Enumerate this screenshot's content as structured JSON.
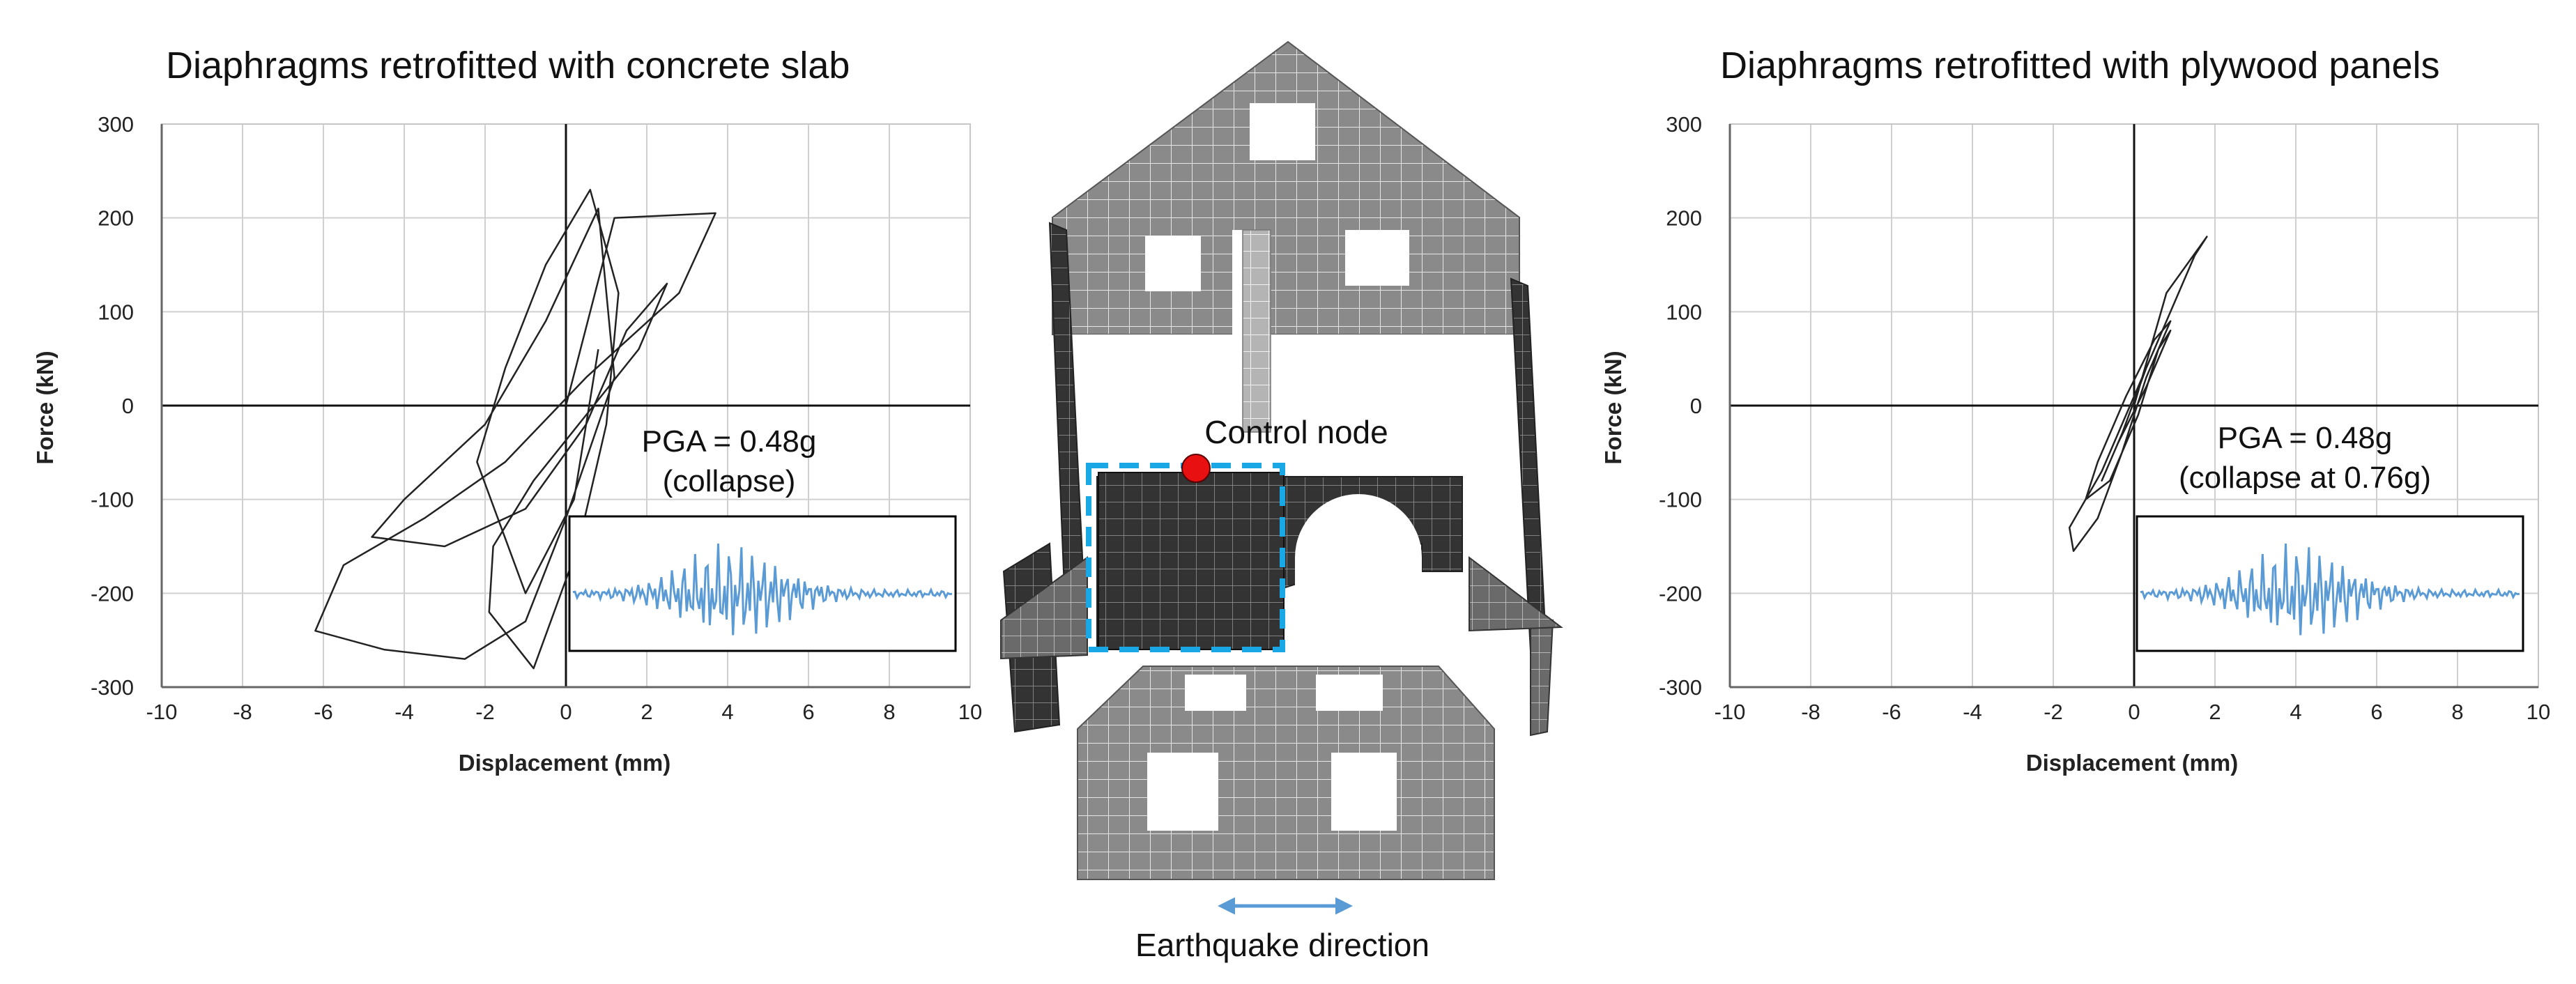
{
  "chart_data": [
    {
      "type": "line",
      "title": "Diaphragms retrofitted with concrete slab",
      "xlabel": "Displacement (mm)",
      "ylabel": "Force (kN)",
      "xlim": [
        -10,
        10
      ],
      "ylim": [
        -300,
        300
      ],
      "xticks": [
        "-10",
        "-8",
        "-6",
        "-4",
        "-2",
        "0",
        "2",
        "4",
        "6",
        "8",
        "10"
      ],
      "yticks": [
        "300",
        "200",
        "100",
        "0",
        "-100",
        "-200",
        "-300"
      ],
      "grid": true,
      "annotation": [
        "PGA = 0.48g",
        "(collapse)"
      ],
      "series": [
        {
          "color": "#222222",
          "x": [
            0,
            1.2,
            3.7,
            2.8,
            0.5,
            -1.5,
            -3.5,
            -5.5,
            -6.2,
            -4.5,
            -2.5,
            -1.0,
            0.0,
            1.2,
            0.8,
            -0.5,
            -2.0,
            -4.0,
            -4.8,
            -3.0,
            -1.0,
            0.5,
            1.5,
            2.5,
            1.8,
            0.5,
            -0.8,
            -1.8,
            -1.9,
            -0.8,
            0.3,
            1.0,
            1.3,
            0.6,
            -0.5,
            -1.5,
            -2.2,
            -1.0,
            0.2,
            0.8
          ],
          "y": [
            0,
            200,
            205,
            120,
            30,
            -60,
            -120,
            -170,
            -240,
            -260,
            -270,
            -230,
            -120,
            30,
            210,
            90,
            -20,
            -100,
            -140,
            -150,
            -110,
            -20,
            80,
            130,
            60,
            -10,
            -80,
            -150,
            -220,
            -280,
            -150,
            -20,
            120,
            230,
            150,
            40,
            -60,
            -200,
            -100,
            60
          ]
        }
      ],
      "inset": "ground motion accelerogram"
    },
    {
      "type": "line",
      "title": "Diaphragms retrofitted with plywood panels",
      "xlabel": "Displacement (mm)",
      "ylabel": "Force (kN)",
      "xlim": [
        -10,
        10
      ],
      "ylim": [
        -300,
        300
      ],
      "xticks": [
        "-10",
        "-8",
        "-6",
        "-4",
        "-2",
        "0",
        "2",
        "4",
        "6",
        "8",
        "10"
      ],
      "yticks": [
        "300",
        "200",
        "100",
        "0",
        "-100",
        "-200",
        "-300"
      ],
      "grid": true,
      "annotation": [
        "PGA = 0.48g",
        "(collapse at 0.76g)"
      ],
      "series": [
        {
          "color": "#222222",
          "x": [
            0,
            0.8,
            1.8,
            1.5,
            0.8,
            0.0,
            -0.8,
            -1.6,
            -1.5,
            -0.9,
            -0.3,
            0.3,
            0.9,
            0.5,
            -0.2,
            -0.9,
            -1.2,
            -0.6,
            0.1,
            0.6,
            0.9,
            0.3,
            -0.4,
            -0.8,
            -0.3,
            0.3
          ],
          "y": [
            0,
            120,
            180,
            160,
            90,
            10,
            -70,
            -130,
            -155,
            -120,
            -50,
            30,
            90,
            70,
            10,
            -60,
            -100,
            -80,
            -10,
            60,
            80,
            20,
            -40,
            -80,
            -30,
            40
          ]
        }
      ],
      "inset": "ground motion accelerogram"
    }
  ],
  "center": {
    "control_node_label": "Control node",
    "direction_label": "Earthquake direction"
  },
  "colors": {
    "signal": "#5b9bd5",
    "control_node": "#e81010",
    "control_box": "#19a7e6",
    "arrow": "#5b9bd5"
  }
}
